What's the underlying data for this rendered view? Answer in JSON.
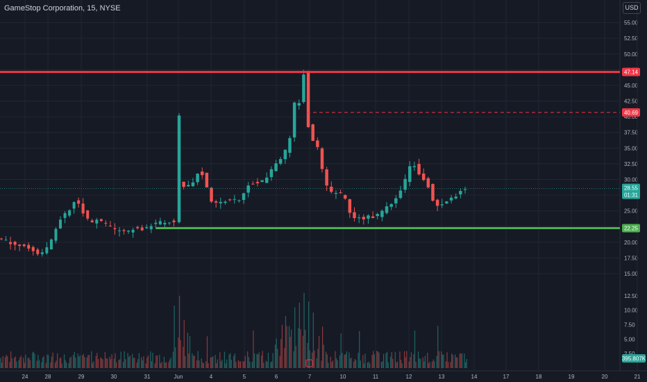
{
  "header": {
    "legend": "GameStop Corporation, 15, NYSE",
    "currency": "USD"
  },
  "colors": {
    "background": "#161a25",
    "grid": "#232733",
    "up": "#26a69a",
    "down": "#ef5350",
    "resistance": "#f23645",
    "support": "#4caf50",
    "axis_text": "#b2b5be"
  },
  "chart_data": {
    "type": "candlestick",
    "symbol": "GameStop Corporation",
    "interval": "15",
    "exchange": "NYSE",
    "currency": "USD",
    "y_ticks": [
      "55.00",
      "52.50",
      "50.00",
      "47.50",
      "45.00",
      "42.50",
      "40.00",
      "37.50",
      "35.00",
      "32.50",
      "30.00",
      "27.50",
      "25.00",
      "22.50",
      "20.00",
      "17.50",
      "15.00"
    ],
    "ylim": [
      14.0,
      57.5
    ],
    "x_ticks": [
      "24",
      "28",
      "29",
      "30",
      "31",
      "Jun",
      "4",
      "5",
      "6",
      "7",
      "10",
      "11",
      "12",
      "13",
      "14",
      "17",
      "18",
      "19",
      "20",
      "21"
    ],
    "volume_ticks": [
      "12.50",
      "10.00",
      "7.50",
      "5.00",
      "2.50"
    ],
    "volume_ylim": [
      0,
      15
    ],
    "price_path": [
      [
        0,
        20.6
      ],
      [
        4,
        19.6
      ],
      [
        7,
        19.0
      ],
      [
        9,
        18.2
      ],
      [
        11,
        19.3
      ],
      [
        12,
        21.2
      ],
      [
        13,
        23.6
      ],
      [
        15,
        24.8
      ],
      [
        17,
        27.0
      ],
      [
        18,
        25.4
      ],
      [
        19,
        24.3
      ],
      [
        20,
        23.0
      ],
      [
        22,
        23.6
      ],
      [
        24,
        22.6
      ],
      [
        26,
        21.8
      ],
      [
        28,
        21.6
      ],
      [
        30,
        22.4
      ],
      [
        32,
        22.1
      ],
      [
        34,
        22.9
      ],
      [
        37,
        23.3
      ],
      [
        39,
        23.0
      ],
      [
        39.01,
        40.2
      ],
      [
        39.3,
        30.2
      ],
      [
        40,
        28.5
      ],
      [
        41,
        29.4
      ],
      [
        42,
        28.6
      ],
      [
        43,
        30.6
      ],
      [
        44,
        31.4
      ],
      [
        45,
        30.3
      ],
      [
        46,
        27.0
      ],
      [
        47,
        25.8
      ],
      [
        48,
        26.3
      ],
      [
        50,
        26.6
      ],
      [
        52,
        26.7
      ],
      [
        53,
        26.8
      ],
      [
        54,
        29.0
      ],
      [
        55,
        29.6
      ],
      [
        56,
        29.2
      ],
      [
        57,
        29.8
      ],
      [
        58,
        29.4
      ],
      [
        59,
        31.0
      ],
      [
        60,
        32.3
      ],
      [
        61,
        33.2
      ],
      [
        62,
        33.7
      ],
      [
        63,
        35.2
      ],
      [
        64,
        38.0
      ],
      [
        64.5,
        42.0
      ],
      [
        65,
        40.0
      ],
      [
        66,
        44.6
      ],
      [
        66.4,
        47.6
      ],
      [
        67,
        43.5
      ],
      [
        67.5,
        38.5
      ],
      [
        68,
        36.0
      ],
      [
        69,
        36.7
      ],
      [
        70,
        33.5
      ],
      [
        71,
        30.0
      ],
      [
        72,
        27.5
      ],
      [
        73,
        28.3
      ],
      [
        74,
        27.6
      ],
      [
        75,
        28.0
      ],
      [
        76,
        25.8
      ],
      [
        77,
        24.1
      ],
      [
        78,
        23.7
      ],
      [
        79,
        23.8
      ],
      [
        80,
        24.1
      ],
      [
        81,
        23.9
      ],
      [
        82,
        24.4
      ],
      [
        83,
        24.2
      ],
      [
        84,
        25.3
      ],
      [
        85,
        25.7
      ],
      [
        86,
        26.8
      ],
      [
        87,
        27.8
      ],
      [
        88,
        29.2
      ],
      [
        89,
        30.6
      ],
      [
        90,
        33.2
      ],
      [
        91,
        31.4
      ],
      [
        92,
        30.5
      ],
      [
        93,
        29.8
      ],
      [
        94,
        28.2
      ],
      [
        95,
        25.3
      ],
      [
        96,
        26.3
      ],
      [
        97,
        26.1
      ],
      [
        98,
        26.9
      ],
      [
        99,
        27.1
      ],
      [
        100,
        27.6
      ],
      [
        101,
        28.6
      ]
    ],
    "n_bars": 102,
    "lines": [
      {
        "type": "resistance",
        "price": 47.14,
        "label": "47.14",
        "style": "solid",
        "color": "#f23645"
      },
      {
        "type": "level",
        "price": 40.69,
        "label": "40.69",
        "style": "dashed",
        "color": "#f23645"
      },
      {
        "type": "support",
        "price": 22.25,
        "label": "22.25",
        "style": "solid",
        "color": "#4caf50"
      }
    ],
    "last_price": {
      "value": 28.55,
      "label": "28.55",
      "countdown": "01:31"
    },
    "volume_last": {
      "label": "395.807K"
    },
    "volume_spikes": [
      [
        38,
        10.8
      ],
      [
        39,
        12.5
      ],
      [
        40,
        8.3
      ],
      [
        45,
        5.5
      ],
      [
        55,
        6.5
      ],
      [
        62,
        9.0
      ],
      [
        64,
        10.5
      ],
      [
        65,
        11.3
      ],
      [
        66,
        13.0
      ],
      [
        67,
        11.5
      ],
      [
        68,
        9.6
      ],
      [
        74,
        6.0
      ],
      [
        78,
        6.4
      ],
      [
        90,
        6.5
      ],
      [
        95,
        7.3
      ]
    ]
  }
}
